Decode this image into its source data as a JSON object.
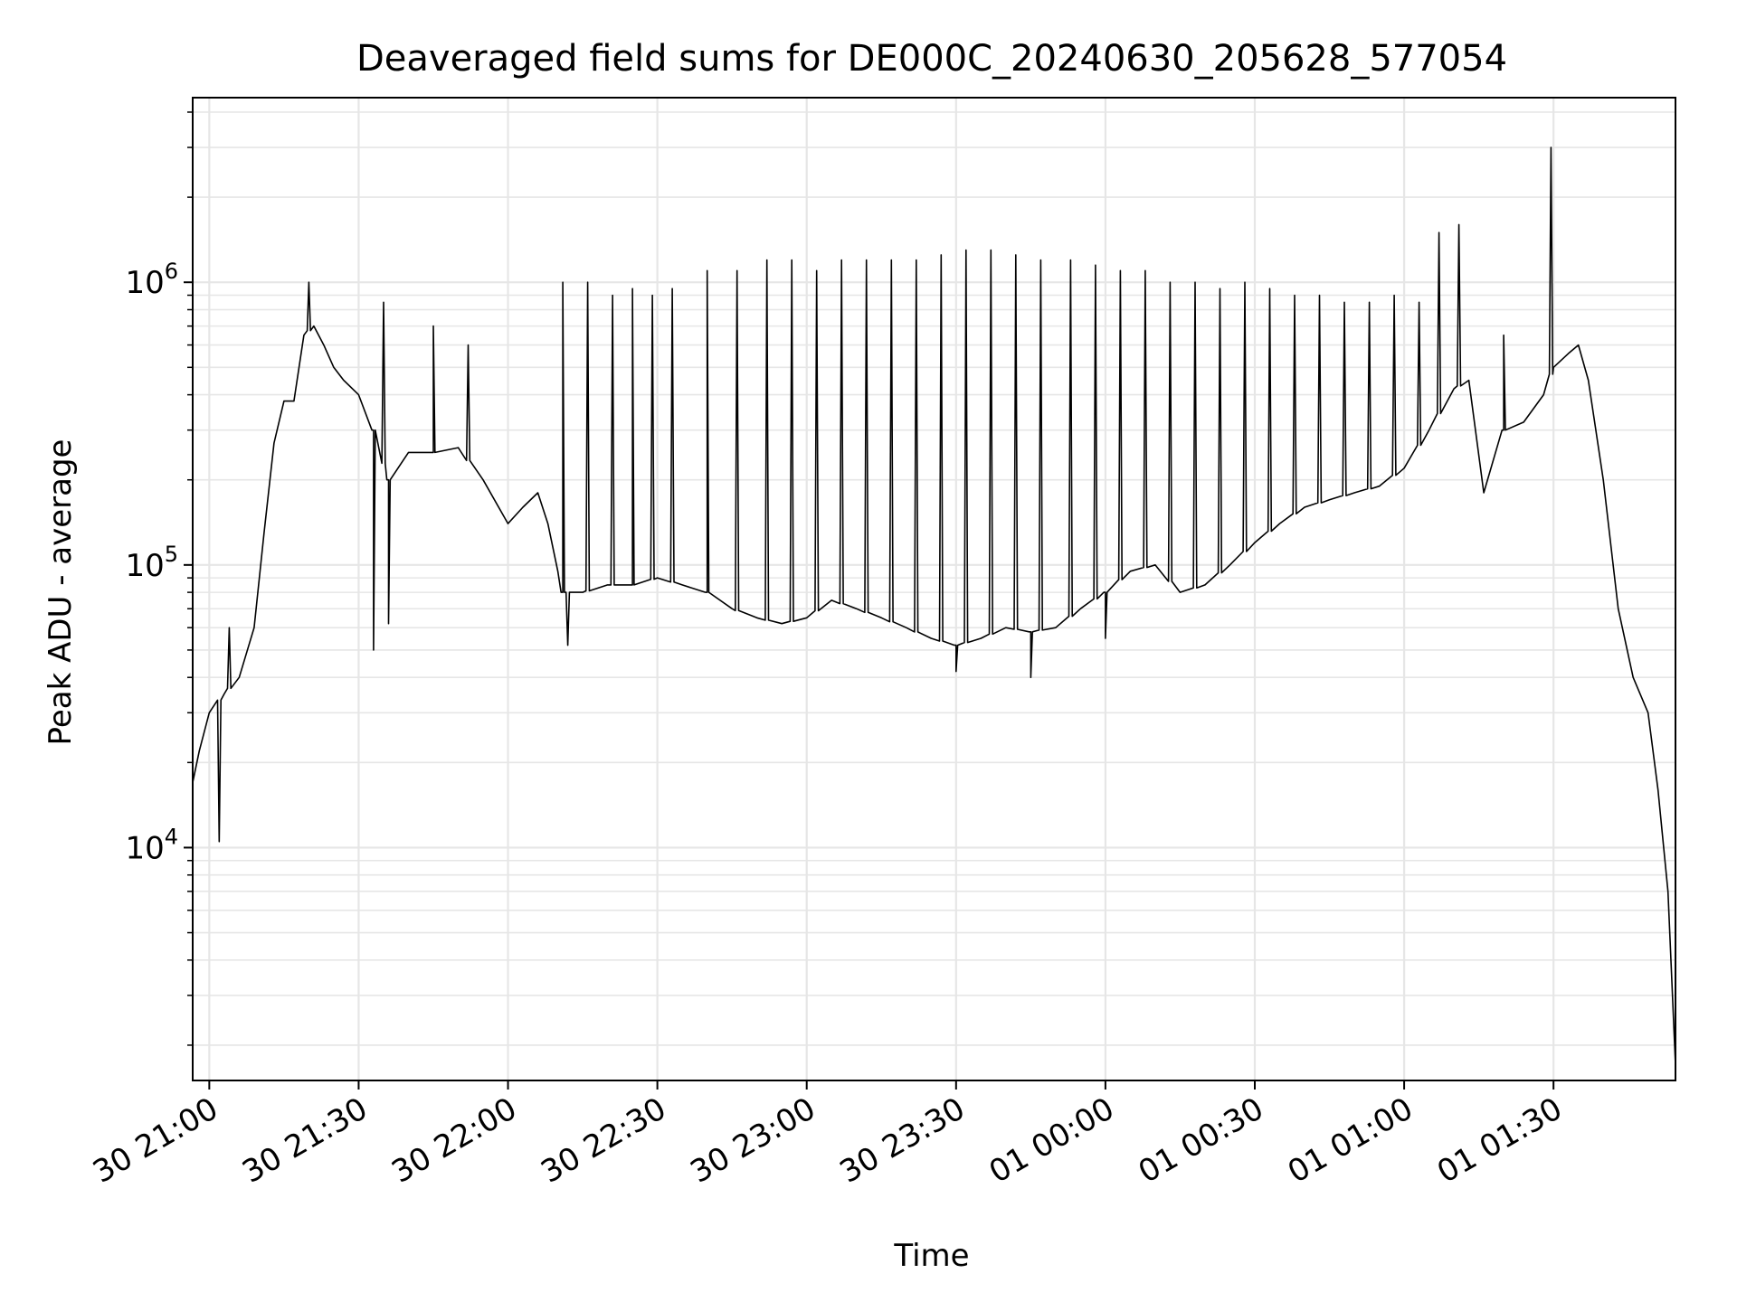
{
  "chart_data": {
    "type": "line",
    "title": "Deaveraged field sums for DE000C_20240630_205628_577054",
    "xlabel": "Time",
    "ylabel": "Peak ADU - average",
    "y_scale": "log",
    "ylim": [
      1500,
      4500000
    ],
    "xlim": [
      "2024-06-30 20:56:40",
      "2024-07-01 01:54:30"
    ],
    "grid": true,
    "x_tick_labels": [
      "30 21:00",
      "30 21:30",
      "30 22:00",
      "30 22:30",
      "30 23:00",
      "30 23:30",
      "01 00:00",
      "01 00:30",
      "01 01:00",
      "01 01:30"
    ],
    "x_tick_values": [
      "2024-06-30 21:00",
      "2024-06-30 21:30",
      "2024-06-30 22:00",
      "2024-06-30 22:30",
      "2024-06-30 23:00",
      "2024-06-30 23:30",
      "2024-07-01 00:00",
      "2024-07-01 00:30",
      "2024-07-01 01:00",
      "2024-07-01 01:30"
    ],
    "y_tick_labels": [
      {
        "base": "10",
        "exp": "4"
      },
      {
        "base": "10",
        "exp": "5"
      },
      {
        "base": "10",
        "exp": "6"
      }
    ],
    "y_tick_values": [
      10000,
      100000,
      1000000
    ],
    "series": [
      {
        "color": "#000000",
        "x": [
          "2024-06-30 20:56:40",
          "2024-06-30 20:58:00",
          "2024-06-30 21:00:00",
          "2024-06-30 21:03:00",
          "2024-06-30 21:06:00",
          "2024-06-30 21:09:00",
          "2024-06-30 21:11:00",
          "2024-06-30 21:13:00",
          "2024-06-30 21:15:00",
          "2024-06-30 21:17:00",
          "2024-06-30 21:19:00",
          "2024-06-30 21:21:00",
          "2024-06-30 21:23:00",
          "2024-06-30 21:25:00",
          "2024-06-30 21:27:00",
          "2024-06-30 21:30:00",
          "2024-06-30 21:33:00",
          "2024-06-30 21:36:00",
          "2024-06-30 21:40:00",
          "2024-06-30 21:45:00",
          "2024-06-30 21:50:00",
          "2024-06-30 21:55:00",
          "2024-06-30 22:00:00",
          "2024-06-30 22:03:00",
          "2024-06-30 22:06:00",
          "2024-06-30 22:08:00",
          "2024-06-30 22:10:00",
          "2024-06-30 22:11:00",
          "2024-06-30 22:15:00",
          "2024-06-30 22:20:00",
          "2024-06-30 22:25:00",
          "2024-06-30 22:30:00",
          "2024-06-30 22:35:00",
          "2024-06-30 22:40:00",
          "2024-06-30 22:45:00",
          "2024-06-30 22:50:00",
          "2024-06-30 22:55:00",
          "2024-06-30 23:00:00",
          "2024-06-30 23:05:00",
          "2024-06-30 23:10:00",
          "2024-06-30 23:15:00",
          "2024-06-30 23:20:00",
          "2024-06-30 23:25:00",
          "2024-06-30 23:30:00",
          "2024-06-30 23:35:00",
          "2024-06-30 23:40:00",
          "2024-06-30 23:45:00",
          "2024-06-30 23:50:00",
          "2024-06-30 23:55:00",
          "2024-07-01 00:00:00",
          "2024-07-01 00:05:00",
          "2024-07-01 00:10:00",
          "2024-07-01 00:15:00",
          "2024-07-01 00:20:00",
          "2024-07-01 00:25:00",
          "2024-07-01 00:30:00",
          "2024-07-01 00:35:00",
          "2024-07-01 00:40:00",
          "2024-07-01 00:45:00",
          "2024-07-01 00:50:00",
          "2024-07-01 00:55:00",
          "2024-07-01 01:00:00",
          "2024-07-01 01:05:00",
          "2024-07-01 01:10:00",
          "2024-07-01 01:13:00",
          "2024-07-01 01:16:00",
          "2024-07-01 01:20:00",
          "2024-07-01 01:24:00",
          "2024-07-01 01:28:00",
          "2024-07-01 01:30:00",
          "2024-07-01 01:33:00",
          "2024-07-01 01:35:00",
          "2024-07-01 01:37:00",
          "2024-07-01 01:40:00",
          "2024-07-01 01:43:00",
          "2024-07-01 01:46:00",
          "2024-07-01 01:49:00",
          "2024-07-01 01:51:00",
          "2024-07-01 01:53:00",
          "2024-07-01 01:54:30"
        ],
        "y": [
          17000,
          22000,
          30000,
          35000,
          40000,
          60000,
          130000,
          270000,
          380000,
          380000,
          650000,
          700000,
          600000,
          500000,
          450000,
          400000,
          300000,
          200000,
          250000,
          250000,
          260000,
          200000,
          140000,
          160000,
          180000,
          140000,
          95000,
          80000,
          80000,
          85000,
          85000,
          90000,
          85000,
          80000,
          70000,
          65000,
          62000,
          65000,
          75000,
          70000,
          65000,
          60000,
          55000,
          52000,
          55000,
          60000,
          58000,
          60000,
          70000,
          80000,
          95000,
          100000,
          80000,
          85000,
          100000,
          120000,
          140000,
          160000,
          170000,
          180000,
          190000,
          220000,
          300000,
          420000,
          450000,
          180000,
          300000,
          320000,
          400000,
          500000,
          560000,
          600000,
          450000,
          200000,
          70000,
          40000,
          30000,
          16000,
          7000,
          1700
        ]
      }
    ],
    "spikes": {
      "x": [
        "2024-06-30 21:04:00",
        "2024-06-30 21:20:00",
        "2024-06-30 21:35:00",
        "2024-06-30 21:45:00",
        "2024-06-30 21:52:00",
        "2024-06-30 22:11:00",
        "2024-06-30 22:16:00",
        "2024-06-30 22:21:00",
        "2024-06-30 22:25:00",
        "2024-06-30 22:29:00",
        "2024-06-30 22:33:00",
        "2024-06-30 22:40:00",
        "2024-06-30 22:46:00",
        "2024-06-30 22:52:00",
        "2024-06-30 22:57:00",
        "2024-06-30 23:02:00",
        "2024-06-30 23:07:00",
        "2024-06-30 23:12:00",
        "2024-06-30 23:17:00",
        "2024-06-30 23:22:00",
        "2024-06-30 23:27:00",
        "2024-06-30 23:32:00",
        "2024-06-30 23:37:00",
        "2024-06-30 23:42:00",
        "2024-06-30 23:47:00",
        "2024-06-30 23:53:00",
        "2024-06-30 23:58:00",
        "2024-07-01 00:03:00",
        "2024-07-01 00:08:00",
        "2024-07-01 00:13:00",
        "2024-07-01 00:18:00",
        "2024-07-01 00:23:00",
        "2024-07-01 00:28:00",
        "2024-07-01 00:33:00",
        "2024-07-01 00:38:00",
        "2024-07-01 00:43:00",
        "2024-07-01 00:48:00",
        "2024-07-01 00:53:00",
        "2024-07-01 00:58:00",
        "2024-07-01 01:03:00",
        "2024-07-01 01:07:00",
        "2024-07-01 01:11:00",
        "2024-07-01 01:20:00",
        "2024-07-01 01:29:30"
      ],
      "y": [
        60000,
        1000000,
        850000,
        700000,
        600000,
        1000000,
        1000000,
        900000,
        950000,
        900000,
        950000,
        1100000,
        1100000,
        1200000,
        1200000,
        1100000,
        1200000,
        1200000,
        1200000,
        1200000,
        1250000,
        1300000,
        1300000,
        1250000,
        1200000,
        1200000,
        1150000,
        1100000,
        1100000,
        1000000,
        1000000,
        950000,
        1000000,
        950000,
        900000,
        900000,
        850000,
        850000,
        900000,
        850000,
        1500000,
        1600000,
        650000,
        3000000
      ]
    },
    "dips": {
      "x": [
        "2024-06-30 21:02:00",
        "2024-06-30 21:33:00",
        "2024-06-30 21:36:00",
        "2024-06-30 22:12:00",
        "2024-06-30 23:30:00",
        "2024-06-30 23:45:00",
        "2024-07-01 00:00:00"
      ],
      "y": [
        10500,
        50000,
        62000,
        52000,
        42000,
        40000,
        55000
      ]
    }
  }
}
